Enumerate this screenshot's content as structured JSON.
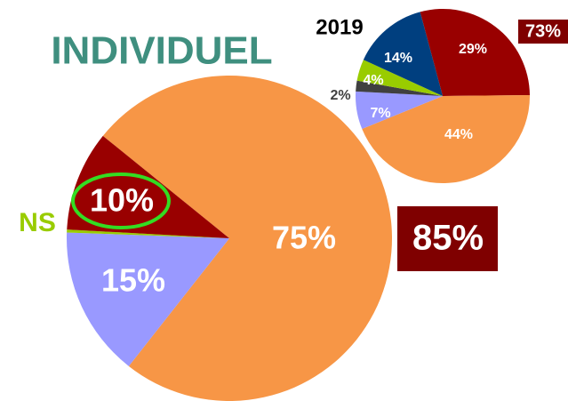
{
  "chart_data": [
    {
      "type": "pie",
      "title": "INDIVIDUEL",
      "categories": [
        null,
        null,
        "NS",
        null
      ],
      "values": [
        75,
        15,
        0.3,
        10
      ],
      "value_labels": [
        "75%",
        "15%",
        null,
        "10%"
      ],
      "colors": [
        "#f79646",
        "#9999ff",
        "#99cc00",
        "#990000"
      ],
      "annotation": "85%"
    },
    {
      "type": "pie",
      "title": "2019",
      "categories": [
        null,
        null,
        null,
        null,
        null,
        null
      ],
      "values": [
        29,
        44,
        7,
        2,
        4,
        14
      ],
      "value_labels": [
        "29%",
        "44%",
        "7%",
        "2%",
        "4%",
        "14%"
      ],
      "colors": [
        "#990000",
        "#f79646",
        "#9999ff",
        "#404040",
        "#99cc00",
        "#003f7f"
      ],
      "annotation": "73%"
    }
  ]
}
